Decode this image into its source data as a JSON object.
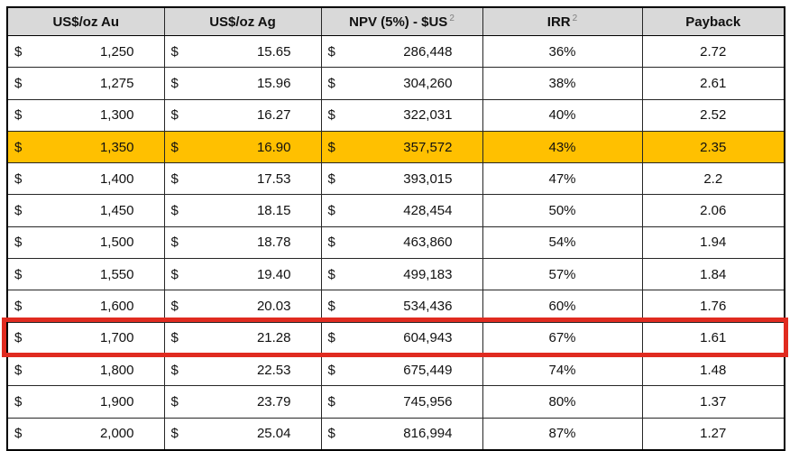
{
  "table": {
    "columns": [
      {
        "key": "au",
        "label": "US$/oz Au",
        "sup": "",
        "format": "accounting"
      },
      {
        "key": "ag",
        "label": "US$/oz Ag",
        "sup": "",
        "format": "accounting"
      },
      {
        "key": "npv",
        "label": "NPV (5%) - $US",
        "sup": "2",
        "format": "accounting"
      },
      {
        "key": "irr",
        "label": "IRR",
        "sup": "2",
        "format": "center"
      },
      {
        "key": "payback",
        "label": "Payback",
        "sup": "",
        "format": "center"
      }
    ],
    "currency_symbol": "$",
    "rows": [
      {
        "au": "1,250",
        "ag": "15.65",
        "npv": "286,448",
        "irr": "36%",
        "payback": "2.72",
        "highlight": false,
        "outlined": false
      },
      {
        "au": "1,275",
        "ag": "15.96",
        "npv": "304,260",
        "irr": "38%",
        "payback": "2.61",
        "highlight": false,
        "outlined": false
      },
      {
        "au": "1,300",
        "ag": "16.27",
        "npv": "322,031",
        "irr": "40%",
        "payback": "2.52",
        "highlight": false,
        "outlined": false
      },
      {
        "au": "1,350",
        "ag": "16.90",
        "npv": "357,572",
        "irr": "43%",
        "payback": "2.35",
        "highlight": true,
        "outlined": false
      },
      {
        "au": "1,400",
        "ag": "17.53",
        "npv": "393,015",
        "irr": "47%",
        "payback": "2.2",
        "highlight": false,
        "outlined": false
      },
      {
        "au": "1,450",
        "ag": "18.15",
        "npv": "428,454",
        "irr": "50%",
        "payback": "2.06",
        "highlight": false,
        "outlined": false
      },
      {
        "au": "1,500",
        "ag": "18.78",
        "npv": "463,860",
        "irr": "54%",
        "payback": "1.94",
        "highlight": false,
        "outlined": false
      },
      {
        "au": "1,550",
        "ag": "19.40",
        "npv": "499,183",
        "irr": "57%",
        "payback": "1.84",
        "highlight": false,
        "outlined": false
      },
      {
        "au": "1,600",
        "ag": "20.03",
        "npv": "534,436",
        "irr": "60%",
        "payback": "1.76",
        "highlight": false,
        "outlined": false
      },
      {
        "au": "1,700",
        "ag": "21.28",
        "npv": "604,943",
        "irr": "67%",
        "payback": "1.61",
        "highlight": false,
        "outlined": true
      },
      {
        "au": "1,800",
        "ag": "22.53",
        "npv": "675,449",
        "irr": "74%",
        "payback": "1.48",
        "highlight": false,
        "outlined": false
      },
      {
        "au": "1,900",
        "ag": "23.79",
        "npv": "745,956",
        "irr": "80%",
        "payback": "1.37",
        "highlight": false,
        "outlined": false
      },
      {
        "au": "2,000",
        "ag": "25.04",
        "npv": "816,994",
        "irr": "87%",
        "payback": "1.27",
        "highlight": false,
        "outlined": false
      }
    ]
  },
  "colors": {
    "header_bg": "#d9d9d9",
    "highlight_bg": "#ffc000",
    "outline_red": "#e02b20",
    "grid_line": "#262626",
    "outer_border": "#000000",
    "superscript": "#7f7f7f"
  },
  "chart_data": {
    "type": "table",
    "title": "Gold/Silver price sensitivity table",
    "columns": [
      "US$/oz Au",
      "US$/oz Ag",
      "NPV (5%) - $US 2",
      "IRR 2",
      "Payback"
    ],
    "rows": [
      [
        1250,
        15.65,
        286448,
        "36%",
        2.72
      ],
      [
        1275,
        15.96,
        304260,
        "38%",
        2.61
      ],
      [
        1300,
        16.27,
        322031,
        "40%",
        2.52
      ],
      [
        1350,
        16.9,
        357572,
        "43%",
        2.35
      ],
      [
        1400,
        17.53,
        393015,
        "47%",
        2.2
      ],
      [
        1450,
        18.15,
        428454,
        "50%",
        2.06
      ],
      [
        1500,
        18.78,
        463860,
        "54%",
        1.94
      ],
      [
        1550,
        19.4,
        499183,
        "57%",
        1.84
      ],
      [
        1600,
        20.03,
        534436,
        "60%",
        1.76
      ],
      [
        1700,
        21.28,
        604943,
        "67%",
        1.61
      ],
      [
        1800,
        22.53,
        675449,
        "74%",
        1.48
      ],
      [
        1900,
        23.79,
        745956,
        "80%",
        1.37
      ],
      [
        2000,
        25.04,
        816994,
        "87%",
        1.27
      ]
    ],
    "annotations": {
      "highlighted_row_index": 3,
      "highlighted_row_style": "orange-fill",
      "outlined_row_index": 9,
      "outlined_row_style": "red-border-box"
    }
  }
}
